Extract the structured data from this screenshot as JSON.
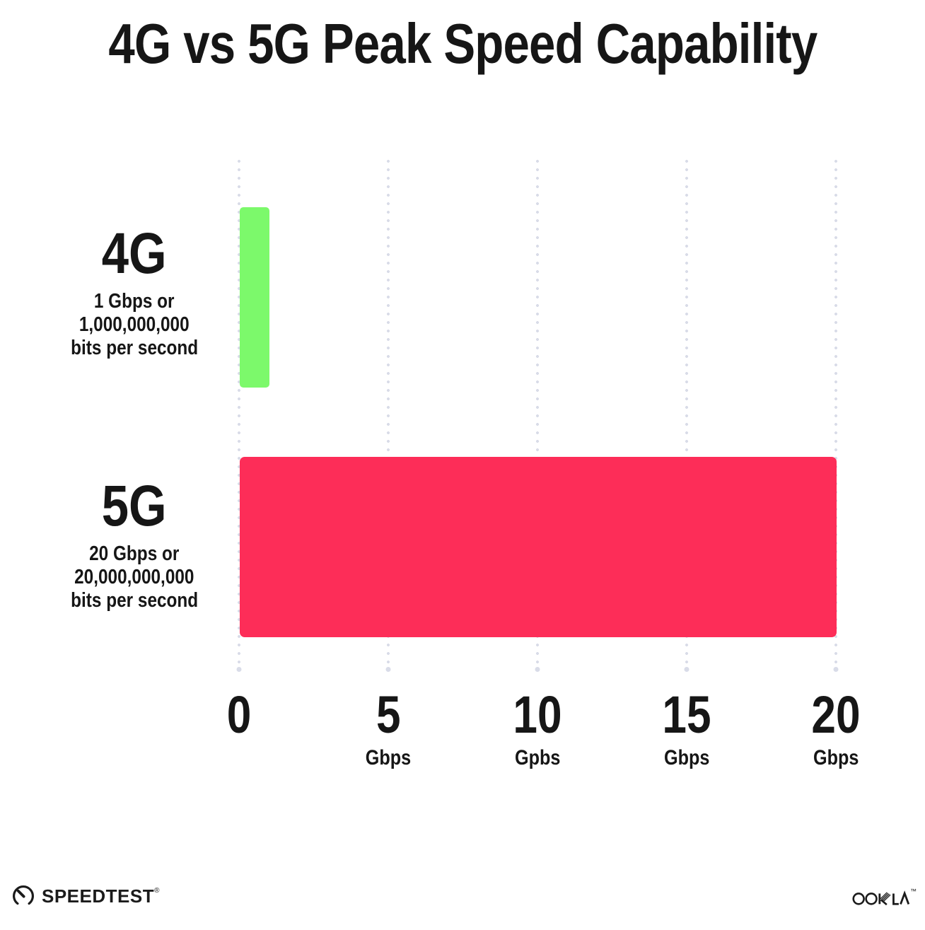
{
  "title": "4G vs 5G Peak Speed Capability",
  "chart_data": {
    "type": "bar",
    "orientation": "horizontal",
    "title": "4G vs 5G Peak Speed Capability",
    "categories": [
      "4G",
      "5G"
    ],
    "values": [
      1,
      20
    ],
    "value_unit": "Gbps",
    "xlim": [
      0,
      20
    ],
    "grid": "dotted vertical gridlines at 0, 5, 10, 15, 20 Gbps",
    "legend_position": "none",
    "bar_colors": [
      "#7cf96b",
      "#fd2d58"
    ],
    "rows": [
      {
        "name": "4G",
        "value": 1,
        "sub_lines": [
          "1 Gbps or",
          "1,000,000,000",
          "bits per second"
        ]
      },
      {
        "name": "5G",
        "value": 20,
        "sub_lines": [
          "20 Gbps or",
          "20,000,000,000",
          "bits per second"
        ]
      }
    ],
    "x_ticks": [
      {
        "number": "0",
        "unit": ""
      },
      {
        "number": "5",
        "unit": "Gbps"
      },
      {
        "number": "10",
        "unit": "Gpbs"
      },
      {
        "number": "15",
        "unit": "Gbps"
      },
      {
        "number": "20",
        "unit": "Gbps"
      }
    ]
  },
  "footer": {
    "speedtest": "SPEEDTEST",
    "speedtest_mark": "®",
    "ookla": "OOKLA",
    "ookla_mark": "™"
  },
  "colors": {
    "bar_4g": "#7cf96b",
    "bar_5g": "#fd2d58",
    "grid_dot": "#d9dce8",
    "text": "#161616",
    "background": "#ffffff"
  }
}
